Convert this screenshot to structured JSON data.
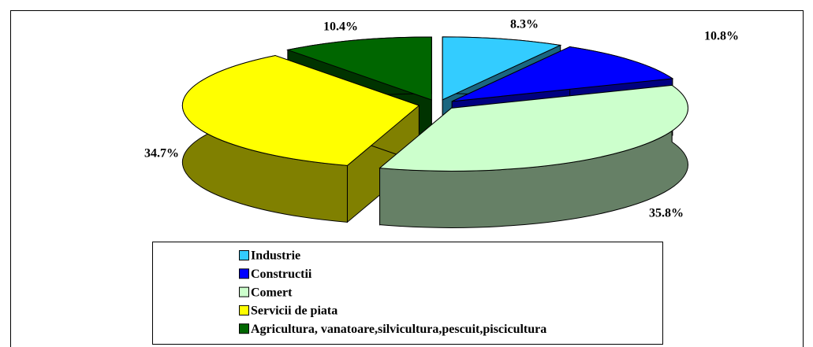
{
  "chart_data": {
    "type": "pie3d",
    "categories": [
      "Industrie",
      "Constructii",
      "Comert",
      "Servicii de piata",
      "Agricultura, vanatoare,silvicultura,pescuit,piscicultura"
    ],
    "values": [
      8.3,
      10.8,
      35.8,
      34.7,
      10.4
    ],
    "value_labels": [
      "8.3%",
      "10.8%",
      "35.8%",
      "34.7%",
      "10.4%"
    ],
    "colors": [
      "#33ccff",
      "#0000ff",
      "#ccffcc",
      "#ffff00",
      "#006600"
    ],
    "legend": "bottom"
  }
}
